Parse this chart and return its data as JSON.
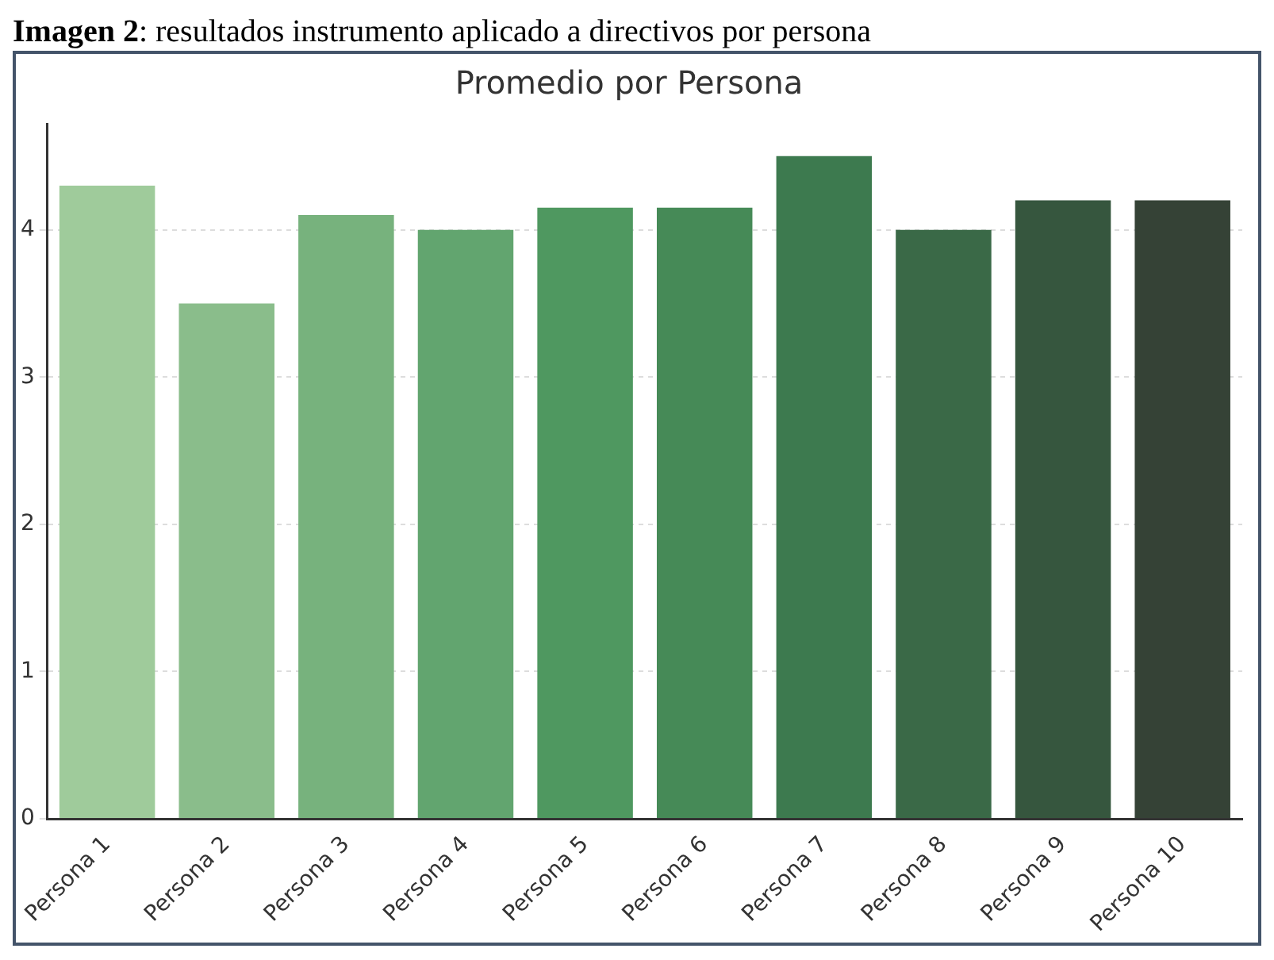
{
  "chart_data": {
    "type": "bar",
    "title": "Promedio por Persona",
    "annotations": [
      "Imagen 2: resultados instrumento aplicado a directivos por persona"
    ],
    "categories": [
      "Persona 1",
      "Persona 2",
      "Persona 3",
      "Persona 4",
      "Persona 5",
      "Persona 6",
      "Persona 7",
      "Persona 8",
      "Persona 9",
      "Persona 10"
    ],
    "values": [
      4.3,
      3.5,
      4.1,
      4.0,
      4.15,
      4.15,
      4.5,
      4.0,
      4.2,
      4.2
    ],
    "colors": [
      "#9fcb9b",
      "#8abd8b",
      "#77b27d",
      "#62a56f",
      "#4f9860",
      "#468a57",
      "#3d7a4f",
      "#3a6947",
      "#36563e",
      "#354236"
    ],
    "ylim": [
      0,
      4.72
    ],
    "yticks": [
      0,
      1,
      2,
      3,
      4
    ],
    "grid": "y"
  }
}
